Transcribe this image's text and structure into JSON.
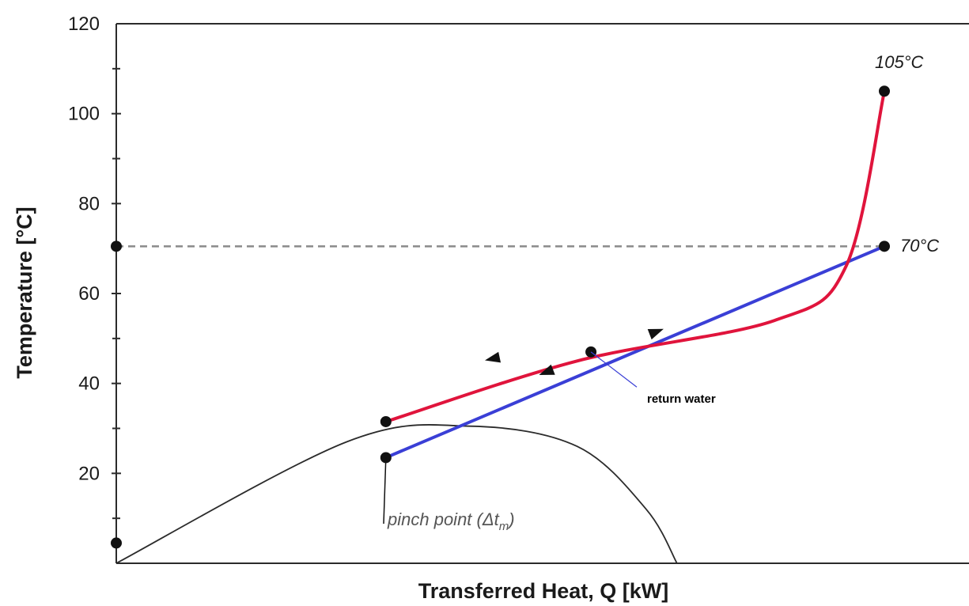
{
  "chart_data": {
    "type": "line",
    "title": "",
    "xlabel": "Transferred Heat, Q [kW]",
    "ylabel": "Temperature [°C]",
    "ylim": [
      0,
      120
    ],
    "yticks": [
      20,
      40,
      60,
      80,
      100,
      120
    ],
    "ytick_labels": [
      "20",
      "40",
      "60",
      "80",
      "100",
      "120"
    ],
    "grid": false,
    "legend": "none",
    "series": [
      {
        "color": "#e0143c",
        "points": [
          [
            0.351,
            31.5
          ],
          [
            0.6,
            45
          ],
          [
            0.857,
            54
          ],
          [
            0.95,
            66
          ],
          [
            1.0,
            105
          ]
        ]
      },
      {
        "color": "#3a3fd6",
        "points": [
          [
            0.351,
            23.5
          ],
          [
            1.0,
            70.5
          ]
        ]
      },
      {
        "color": "#2b2b2b",
        "points": [
          [
            0.0,
            0.0
          ],
          [
            0.3,
            27
          ],
          [
            0.46,
            30.5
          ],
          [
            0.6,
            26
          ],
          [
            0.69,
            12
          ],
          [
            0.73,
            0.0
          ]
        ]
      }
    ],
    "reference_line": {
      "y": 70.5,
      "style": "dashed"
    },
    "markers": [
      {
        "x": 0.351,
        "y": 31.5
      },
      {
        "x": 0.351,
        "y": 23.5
      },
      {
        "x": 1.0,
        "y": 105
      },
      {
        "x": 1.0,
        "y": 70.5
      },
      {
        "x": 0.0,
        "y": 70.5
      },
      {
        "x": 0.0,
        "y": 4.5
      },
      {
        "x": 0.618,
        "y": 47
      }
    ],
    "annotations": {
      "label_105": "105°C",
      "label_70": "70°C",
      "return_water": "return water",
      "pinch_point_prefix": "pinch point (Δt",
      "pinch_point_sub": "m",
      "pinch_point_suffix": ")"
    }
  }
}
